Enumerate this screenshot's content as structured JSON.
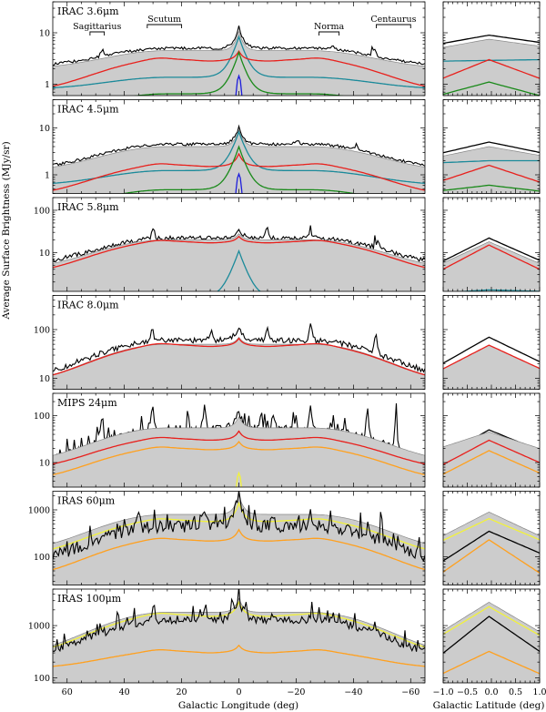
{
  "figure": {
    "ylabel": "Average Surface Brightness (MJy/sr)",
    "xlabel_left": "Galactic Longitude (deg)",
    "xlabel_right": "Galactic Latitude (deg)"
  },
  "annotations": [
    {
      "text": "Sagittarius",
      "l_start": 52,
      "l_end": 47
    },
    {
      "text": "Scutum",
      "l_start": 32,
      "l_end": 20
    },
    {
      "text": "Norma",
      "l_start": -28,
      "l_end": -35
    },
    {
      "text": "Centaurus",
      "l_start": -48,
      "l_end": -60
    }
  ],
  "chart_data": [
    {
      "type": "line",
      "title": "IRAC 3.6μm",
      "ylog": true,
      "ylim": [
        0.6,
        40
      ],
      "yticks": [
        1,
        10
      ],
      "xlim": [
        65,
        -65
      ],
      "xticks": [
        60,
        40,
        20,
        0,
        -20,
        -40,
        -60
      ],
      "lat_xlim": [
        -1.0,
        1.0
      ],
      "lat_xticks": [
        -1.0,
        -0.5,
        0.0,
        0.5,
        1.0
      ],
      "series": [
        {
          "color": "#000000",
          "base": 5,
          "edge": 2.2,
          "peak": 8,
          "noise": 0.06,
          "spikes": [
            [
              48,
              3
            ],
            [
              -33,
              2
            ],
            [
              -47,
              2.5
            ]
          ]
        },
        {
          "color": "#aaaaaa",
          "base": 4.5,
          "edge": 2.0,
          "peak": 6,
          "fill": true
        },
        {
          "color": "#1b8a9a",
          "base": 1.6,
          "edge": 0.8,
          "peak": 7,
          "cusp": true
        },
        {
          "color": "#e8201c",
          "base": 3.0,
          "edge": 0.7,
          "peak": 1.4,
          "ridge": true
        },
        {
          "color": "#1a8a1a",
          "base": 0.8,
          "edge": 0.3,
          "peak": 3.5,
          "cusp": true
        },
        {
          "color": "#1e1edc",
          "base": 0.05,
          "edge": 0.05,
          "peak": 1.4,
          "narrow": true
        }
      ],
      "lat": [
        {
          "color": "#000000",
          "l": [
            6.0,
            9.0,
            6.5
          ]
        },
        {
          "color": "#aaaaaa",
          "l": [
            5.0,
            7.5,
            5.5
          ],
          "fill": true
        },
        {
          "color": "#1b8a9a",
          "l": [
            2.8,
            2.9,
            3.0
          ]
        },
        {
          "color": "#e8201c",
          "l": [
            1.2,
            3.0,
            1.3
          ]
        },
        {
          "color": "#1a8a1a",
          "l": [
            0.6,
            1.1,
            0.6
          ]
        }
      ]
    },
    {
      "type": "line",
      "title": "IRAC 4.5μm",
      "ylog": true,
      "ylim": [
        0.4,
        40
      ],
      "yticks": [
        1,
        10
      ],
      "xlim": [
        65,
        -65
      ],
      "xticks": [
        60,
        40,
        20,
        0,
        -20,
        -40,
        -60
      ],
      "lat_xlim": [
        -1.0,
        1.0
      ],
      "lat_xticks": [
        -1.0,
        -0.5,
        0.0,
        0.5,
        1.0
      ],
      "series": [
        {
          "color": "#000000",
          "base": 4.5,
          "edge": 1.3,
          "peak": 6,
          "noise": 0.07,
          "spikes": [
            [
              -20,
              2.5
            ],
            [
              -41,
              2
            ]
          ]
        },
        {
          "color": "#aaaaaa",
          "base": 4.0,
          "edge": 1.2,
          "peak": 5,
          "fill": true
        },
        {
          "color": "#1b8a9a",
          "base": 1.5,
          "edge": 0.6,
          "peak": 7,
          "cusp": true
        },
        {
          "color": "#e8201c",
          "base": 1.6,
          "edge": 0.35,
          "peak": 1.2,
          "ridge": true
        },
        {
          "color": "#1a8a1a",
          "base": 0.6,
          "edge": 0.2,
          "peak": 3.5,
          "cusp": true
        },
        {
          "color": "#1e1edc",
          "base": 0.04,
          "edge": 0.04,
          "peak": 1.0,
          "narrow": true
        }
      ],
      "lat": [
        {
          "color": "#000000",
          "l": [
            2.8,
            5.0,
            3.0
          ]
        },
        {
          "color": "#aaaaaa",
          "l": [
            2.4,
            4.0,
            2.6
          ],
          "fill": true
        },
        {
          "color": "#1b8a9a",
          "l": [
            1.8,
            2.0,
            2.0
          ]
        },
        {
          "color": "#e8201c",
          "l": [
            0.7,
            1.6,
            0.7
          ]
        },
        {
          "color": "#1a8a1a",
          "l": [
            0.45,
            0.6,
            0.45
          ]
        }
      ]
    },
    {
      "type": "line",
      "title": "IRAC 5.8μm",
      "ylog": true,
      "ylim": [
        1.2,
        200
      ],
      "yticks": [
        10,
        100
      ],
      "xlim": [
        65,
        -65
      ],
      "xticks": [
        60,
        40,
        20,
        0,
        -20,
        -40,
        -60
      ],
      "lat_xlim": [
        -1.0,
        1.0
      ],
      "lat_xticks": [
        -1.0,
        -0.5,
        0.0,
        0.5,
        1.0
      ],
      "series": [
        {
          "color": "#000000",
          "base": 22,
          "edge": 5,
          "peak": 12,
          "noise": 0.12,
          "spikes": [
            [
              30,
              20
            ],
            [
              -10,
              20
            ],
            [
              -25,
              25
            ],
            [
              -48,
              30
            ]
          ]
        },
        {
          "color": "#aaaaaa",
          "base": 20,
          "edge": 4,
          "peak": 8,
          "fill": true
        },
        {
          "color": "#e8201c",
          "base": 18,
          "edge": 3,
          "peak": 6,
          "ridge": true
        },
        {
          "color": "#1b8a9a",
          "base": 1.0,
          "edge": 0.5,
          "peak": 10,
          "cusp": true
        }
      ],
      "lat": [
        {
          "color": "#000000",
          "l": [
            5.5,
            22.0,
            6.5
          ]
        },
        {
          "color": "#aaaaaa",
          "l": [
            5.0,
            18.0,
            5.5
          ],
          "fill": true
        },
        {
          "color": "#e8201c",
          "l": [
            3.5,
            15.0,
            4.0
          ]
        },
        {
          "color": "#1b8a9a",
          "l": [
            1.1,
            1.3,
            1.2
          ]
        }
      ]
    },
    {
      "type": "line",
      "title": "IRAC 8.0μm",
      "ylog": true,
      "ylim": [
        6,
        500
      ],
      "yticks": [
        10,
        100
      ],
      "xlim": [
        65,
        -65
      ],
      "xticks": [
        60,
        40,
        20,
        0,
        -20,
        -40,
        -60
      ],
      "lat_xlim": [
        -1.0,
        1.0
      ],
      "lat_xticks": [
        -1.0,
        -0.5,
        0.0,
        0.5,
        1.0
      ],
      "series": [
        {
          "color": "#000000",
          "base": 60,
          "edge": 10,
          "peak": 50,
          "noise": 0.13,
          "spikes": [
            [
              30,
              60
            ],
            [
              10,
              80
            ],
            [
              -10,
              60
            ],
            [
              -25,
              70
            ],
            [
              -48,
              80
            ]
          ]
        },
        {
          "color": "#aaaaaa",
          "base": 50,
          "edge": 8,
          "peak": 20,
          "fill": true
        },
        {
          "color": "#e8201c",
          "base": 48,
          "edge": 8,
          "peak": 18,
          "ridge": true
        }
      ],
      "lat": [
        {
          "color": "#000000",
          "l": [
            18.0,
            70.0,
            22.0
          ]
        },
        {
          "color": "#aaaaaa",
          "l": [
            14.0,
            48.0,
            16.0
          ],
          "fill": true
        },
        {
          "color": "#e8201c",
          "l": [
            14.0,
            48.0,
            16.0
          ]
        }
      ]
    },
    {
      "type": "line",
      "title": "MIPS 24μm",
      "ylog": true,
      "ylim": [
        3,
        300
      ],
      "yticks": [
        10,
        100
      ],
      "xlim": [
        65,
        -65
      ],
      "xticks": [
        60,
        40,
        20,
        0,
        -20,
        -40,
        -60
      ],
      "lat_xlim": [
        -1.0,
        1.0
      ],
      "lat_xticks": [
        -1.0,
        -0.5,
        0.0,
        0.5,
        1.0
      ],
      "series": [
        {
          "color": "#000000",
          "base": 50,
          "edge": 8,
          "peak": 80,
          "noise": 0.22,
          "spikes": [
            [
              48,
              100
            ],
            [
              30,
              120
            ],
            [
              12,
              140
            ],
            [
              -12,
              150
            ],
            [
              -25,
              120
            ],
            [
              -45,
              90
            ],
            [
              -55,
              80
            ]
          ]
        },
        {
          "color": "#aaaaaa",
          "base": 55,
          "edge": 10,
          "peak": 40,
          "fill": true
        },
        {
          "color": "#e8201c",
          "base": 32,
          "edge": 7,
          "peak": 15,
          "ridge": true
        },
        {
          "color": "#ffa01e",
          "base": 20,
          "edge": 4,
          "peak": 8,
          "ridge": true
        },
        {
          "color": "#f2f23a",
          "base": 0.01,
          "edge": 0.01,
          "peak": 6,
          "narrow": true
        }
      ],
      "lat": [
        {
          "color": "#000000",
          "l": [
            12.0,
            50.0,
            18.0
          ]
        },
        {
          "color": "#aaaaaa",
          "l": [
            20.0,
            45.0,
            20.0
          ],
          "fill": true
        },
        {
          "color": "#e8201c",
          "l": [
            8.0,
            30.0,
            10.0
          ]
        },
        {
          "color": "#ffa01e",
          "l": [
            5.0,
            18.0,
            6.0
          ]
        }
      ]
    },
    {
      "type": "line",
      "title": "IRAS 60μm",
      "ylog": true,
      "ylim": [
        25,
        2500
      ],
      "yticks": [
        100,
        1000
      ],
      "xlim": [
        65,
        -65
      ],
      "xticks": [
        60,
        40,
        20,
        0,
        -20,
        -40,
        -60
      ],
      "lat_xlim": [
        -1.0,
        1.0
      ],
      "lat_xticks": [
        -1.0,
        -0.5,
        0.0,
        0.5,
        1.0
      ],
      "series": [
        {
          "color": "#aaaaaa",
          "base": 800,
          "edge": 130,
          "peak": 1200,
          "fill": true
        },
        {
          "color": "#f2f23a",
          "base": 600,
          "edge": 100,
          "peak": 800,
          "ridge": true
        },
        {
          "color": "#000000",
          "base": 450,
          "edge": 70,
          "peak": 1500,
          "noise": 0.3,
          "spikes": [
            [
              35,
              600
            ],
            [
              12,
              900
            ],
            [
              -12,
              700
            ],
            [
              -25,
              800
            ],
            [
              -50,
              500
            ]
          ]
        },
        {
          "color": "#ffa01e",
          "base": 230,
          "edge": 35,
          "peak": 150,
          "ridge": true
        }
      ],
      "lat": [
        {
          "color": "#aaaaaa",
          "l": [
            250.0,
            900.0,
            280.0
          ],
          "fill": true
        },
        {
          "color": "#f2f23a",
          "l": [
            200.0,
            650.0,
            230.0
          ]
        },
        {
          "color": "#000000",
          "l": [
            70.0,
            350.0,
            120.0
          ]
        },
        {
          "color": "#ffa01e",
          "l": [
            40.0,
            230.0,
            45.0
          ]
        }
      ]
    },
    {
      "type": "line",
      "title": "IRAS 100μm",
      "ylog": true,
      "ylim": [
        80,
        5000
      ],
      "yticks": [
        100,
        1000
      ],
      "xlim": [
        65,
        -65
      ],
      "xticks": [
        60,
        40,
        20,
        0,
        -20,
        -40,
        -60
      ],
      "lat_xlim": [
        -1.0,
        1.0
      ],
      "lat_xticks": [
        -1.0,
        -0.5,
        0.0,
        0.5,
        1.0
      ],
      "series": [
        {
          "color": "#aaaaaa",
          "base": 1800,
          "edge": 280,
          "peak": 1500,
          "fill": true
        },
        {
          "color": "#f2f23a",
          "base": 1600,
          "edge": 260,
          "peak": 1200,
          "ridge": true
        },
        {
          "color": "#000000",
          "base": 1300,
          "edge": 220,
          "peak": 2000,
          "noise": 0.18,
          "spikes": [
            [
              12,
              800
            ],
            [
              -12,
              700
            ],
            [
              -25,
              600
            ]
          ]
        },
        {
          "color": "#ffa01e",
          "base": 320,
          "edge": 150,
          "peak": 100,
          "ridge": true
        }
      ],
      "lat": [
        {
          "color": "#aaaaaa",
          "l": [
            700.0,
            2800.0,
            760.0
          ],
          "fill": true
        },
        {
          "color": "#f2f23a",
          "l": [
            600.0,
            2300.0,
            650.0
          ]
        },
        {
          "color": "#000000",
          "l": [
            250.0,
            1500.0,
            320.0
          ]
        },
        {
          "color": "#ffa01e",
          "l": [
            110.0,
            320.0,
            120.0
          ]
        }
      ]
    }
  ]
}
